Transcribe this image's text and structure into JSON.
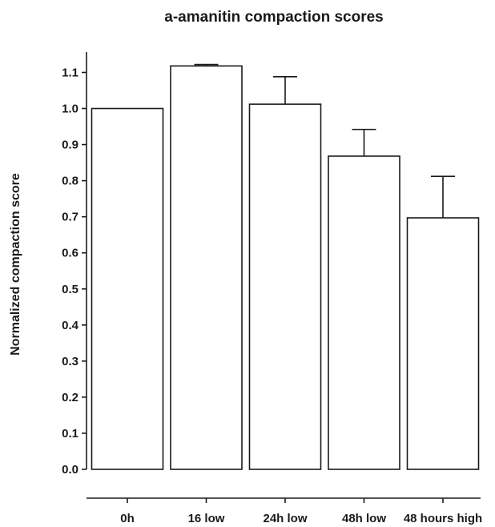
{
  "chart_data": {
    "type": "bar",
    "title": "a-amanitin compaction scores",
    "xlabel": "",
    "ylabel": "Normalized compaction score",
    "categories": [
      "0h",
      "16 low",
      "24h low",
      "48h low",
      "48 hours high"
    ],
    "values": [
      1.0,
      1.118,
      1.012,
      0.868,
      0.697
    ],
    "error_upper": [
      0.0,
      0.004,
      0.076,
      0.074,
      0.115
    ],
    "ylim": [
      0.0,
      1.15
    ],
    "yticks": [
      "0.0",
      "0.1",
      "0.2",
      "0.3",
      "0.4",
      "0.5",
      "0.6",
      "0.7",
      "0.8",
      "0.9",
      "1.0",
      "1.1"
    ],
    "grid": false,
    "colors": {
      "bar_fill": "#ffffff",
      "stroke": "#1a1a1a"
    }
  }
}
